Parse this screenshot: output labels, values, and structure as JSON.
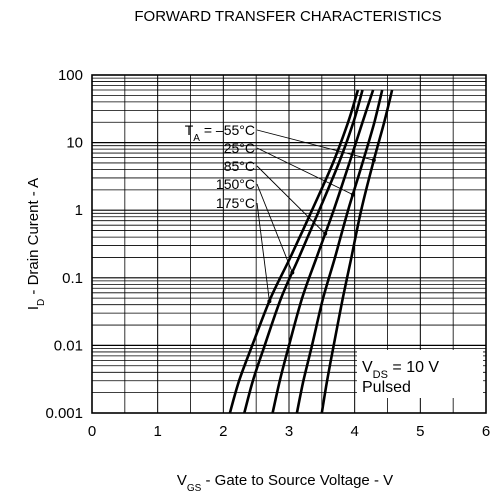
{
  "chart_data": {
    "type": "line",
    "title": "FORWARD TRANSFER CHARACTERISTICS",
    "ylabel": {
      "main": "I",
      "sub": "D",
      "rest": " - Drain Curent - A"
    },
    "xlabel": {
      "main": "V",
      "sub": "GS",
      "rest": " - Gate to Source Voltage - V"
    },
    "xlim": [
      0,
      6
    ],
    "ylim": [
      0.001,
      100
    ],
    "y_scale": "log",
    "grid": true,
    "x_ticks": [
      "0",
      "1",
      "2",
      "3",
      "4",
      "5",
      "6"
    ],
    "y_ticks": [
      "0.001",
      "0.01",
      "0.1",
      "1",
      "10",
      "100"
    ],
    "annotation": {
      "line1_main": "V",
      "line1_sub": "DS",
      "line1_rest": " = 10 V",
      "line2": "Pulsed"
    },
    "legend_labels": [
      {
        "main": "T",
        "sub": "A",
        "rest": " = –55°C"
      },
      {
        "main": "25°C",
        "sub": "",
        "rest": ""
      },
      {
        "main": "85°C",
        "sub": "",
        "rest": ""
      },
      {
        "main": "150°C",
        "sub": "",
        "rest": ""
      },
      {
        "main": "175°C",
        "sub": "",
        "rest": ""
      }
    ],
    "series": [
      {
        "temperature": "-55°C",
        "x": [
          3.5,
          3.58,
          3.68,
          3.82,
          3.95,
          4.1,
          4.28,
          4.45,
          4.57
        ],
        "y": [
          0.001,
          0.003,
          0.01,
          0.05,
          0.2,
          1,
          5,
          20,
          60
        ]
      },
      {
        "temperature": "25°C",
        "x": [
          3.12,
          3.22,
          3.35,
          3.52,
          3.7,
          3.9,
          4.12,
          4.3,
          4.42
        ],
        "y": [
          0.001,
          0.003,
          0.01,
          0.05,
          0.2,
          1,
          5,
          20,
          60
        ]
      },
      {
        "temperature": "85°C",
        "x": [
          2.75,
          2.86,
          3.0,
          3.2,
          3.42,
          3.68,
          3.92,
          4.12,
          4.28
        ],
        "y": [
          0.001,
          0.003,
          0.01,
          0.05,
          0.2,
          1,
          5,
          20,
          60
        ]
      },
      {
        "temperature": "150°C",
        "x": [
          2.32,
          2.45,
          2.63,
          2.88,
          3.15,
          3.46,
          3.76,
          3.98,
          4.12
        ],
        "y": [
          0.001,
          0.003,
          0.01,
          0.05,
          0.2,
          1,
          5,
          20,
          60
        ]
      },
      {
        "temperature": "175°C",
        "x": [
          2.1,
          2.24,
          2.44,
          2.72,
          3.02,
          3.35,
          3.67,
          3.9,
          4.05
        ],
        "y": [
          0.001,
          0.003,
          0.01,
          0.05,
          0.2,
          1,
          5,
          20,
          60
        ]
      }
    ]
  }
}
